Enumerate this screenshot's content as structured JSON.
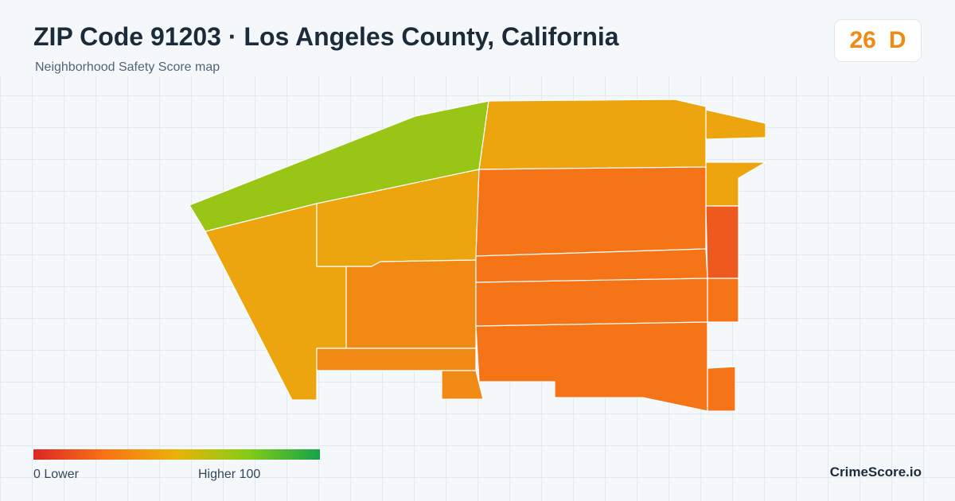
{
  "header": {
    "title": "ZIP Code 91203 · Los Angeles County, California",
    "subtitle": "Neighborhood Safety Score map"
  },
  "score": {
    "value": "26",
    "grade": "D",
    "color": "#f08a14"
  },
  "map": {
    "region_color_scale": {
      "green": "#99c616",
      "yellow_orange": "#eca40f",
      "orange": "#f08a14",
      "dark_orange": "#f57418",
      "red_orange": "#ee5a1e",
      "border": "#ffffff"
    }
  },
  "legend": {
    "low_text": "0  Lower",
    "high_text": "Higher  100",
    "gradient_colors": [
      "#dc2626",
      "#f97316",
      "#eab308",
      "#84cc16",
      "#16a34a"
    ]
  },
  "brand": "CrimeScore.io"
}
